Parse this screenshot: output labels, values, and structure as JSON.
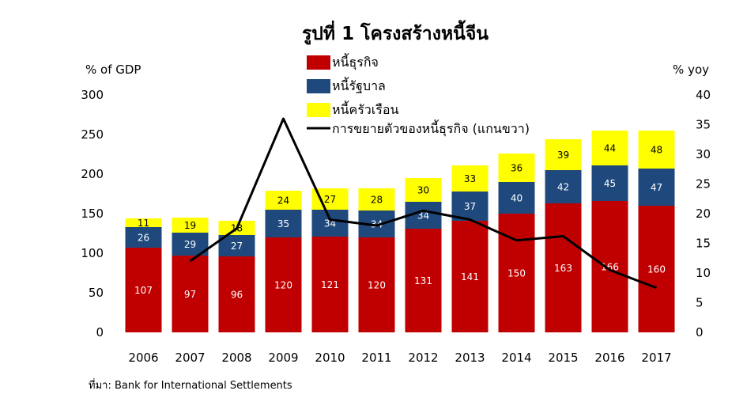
{
  "chart_data": {
    "type": "bar",
    "stacked": true,
    "title": "รูปที่ 1 โครงสร้างหนี้จีน",
    "ylabel_left": "% of GDP",
    "ylabel_right": "% yoy",
    "ylim_left": [
      0,
      300
    ],
    "ylim_right": [
      0,
      40
    ],
    "yticks_left": [
      0,
      50,
      100,
      150,
      200,
      250,
      300
    ],
    "yticks_right": [
      0,
      5,
      10,
      15,
      20,
      25,
      30,
      35,
      40
    ],
    "categories": [
      "2006",
      "2007",
      "2008",
      "2009",
      "2010",
      "2011",
      "2012",
      "2013",
      "2014",
      "2015",
      "2016",
      "2017"
    ],
    "series": [
      {
        "name": "หนี้ธุรกิจ",
        "color": "#c00000",
        "label_color": "#ffffff",
        "values": [
          107,
          97,
          96,
          120,
          121,
          120,
          131,
          141,
          150,
          163,
          166,
          160
        ]
      },
      {
        "name": "หนี้รัฐบาล",
        "color": "#1f497d",
        "label_color": "#ffffff",
        "values": [
          26,
          29,
          27,
          35,
          34,
          34,
          34,
          37,
          40,
          42,
          45,
          47
        ]
      },
      {
        "name": "หนี้ครัวเรือน",
        "color": "#ffff00",
        "label_color": "#000000",
        "values": [
          11,
          19,
          18,
          24,
          27,
          28,
          30,
          33,
          36,
          39,
          44,
          48
        ]
      }
    ],
    "line": {
      "name": "การขยายตัวของหนี้ธุรกิจ (แกนขวา)",
      "axis": "right",
      "color": "#000000",
      "categories": [
        "2007",
        "2008",
        "2009",
        "2010",
        "2011",
        "2012",
        "2013",
        "2014",
        "2015",
        "2016",
        "2017"
      ],
      "values": [
        12,
        17.5,
        36,
        19,
        18,
        20.5,
        19,
        15.5,
        16.2,
        10.5,
        7.5
      ]
    },
    "legend_position": "top-center",
    "grid": false
  },
  "source_text": "ที่มา: Bank for International Settlements"
}
